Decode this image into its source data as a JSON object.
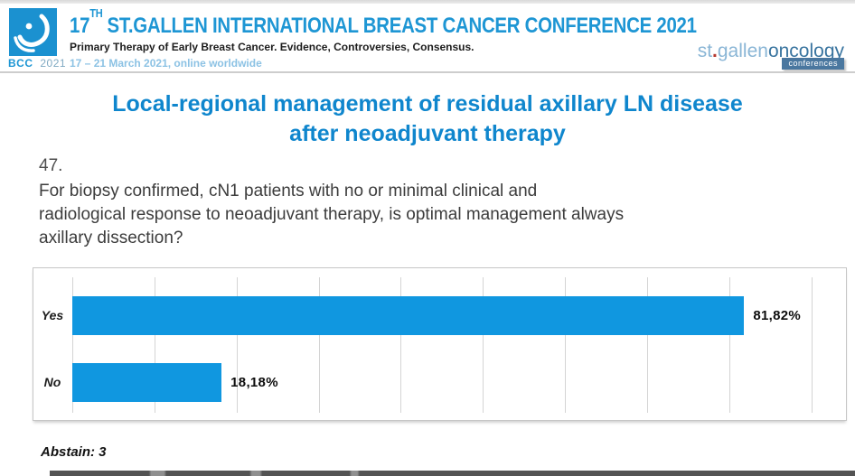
{
  "header": {
    "badge": {
      "org": "BCC",
      "year": "2021"
    },
    "title_num": "17",
    "title_sup": "TH",
    "title_rest": "ST.GALLEN INTERNATIONAL BREAST CANCER CONFERENCE 2021",
    "subtitle": "Primary Therapy of Early Breast Cancer. Evidence, Controversies, Consensus.",
    "date_line": "17 – 21 March 2021, online worldwide",
    "brand": {
      "st": "st",
      "dot": ".",
      "gallen": "gallen",
      "oncology": "oncology",
      "conferences": "conferences"
    }
  },
  "slide": {
    "title_lines": [
      "Local-regional management of residual axillary LN disease",
      "after neoadjuvant therapy"
    ],
    "question_number": "47.",
    "question_lines": [
      "For biopsy confirmed, cN1 patients with no or minimal clinical and",
      "radiological response to neoadjuvant therapy, is optimal management always",
      "axillary dissection?"
    ],
    "abstain_note": "Abstain: 3"
  },
  "chart_data": {
    "type": "bar",
    "orientation": "horizontal",
    "title": "",
    "categories": [
      "Yes",
      "No"
    ],
    "values": [
      81.82,
      18.18
    ],
    "value_labels": [
      "81,82%",
      "18,18%"
    ],
    "xlim": [
      0,
      94
    ],
    "gridline_step": 10,
    "grid": true,
    "legend": false,
    "bar_color": "#1097e0"
  },
  "colors": {
    "header_blue": "#1e96d4",
    "slide_title_blue": "#0f86cd",
    "bar_blue": "#1097e0",
    "date_light_blue": "#8cc2e4",
    "brand_light_blue": "#8ab6d6",
    "brand_steel_blue": "#39749f",
    "brand_red_dot": "#b5382f",
    "grid_gray": "#d4d4d4"
  }
}
